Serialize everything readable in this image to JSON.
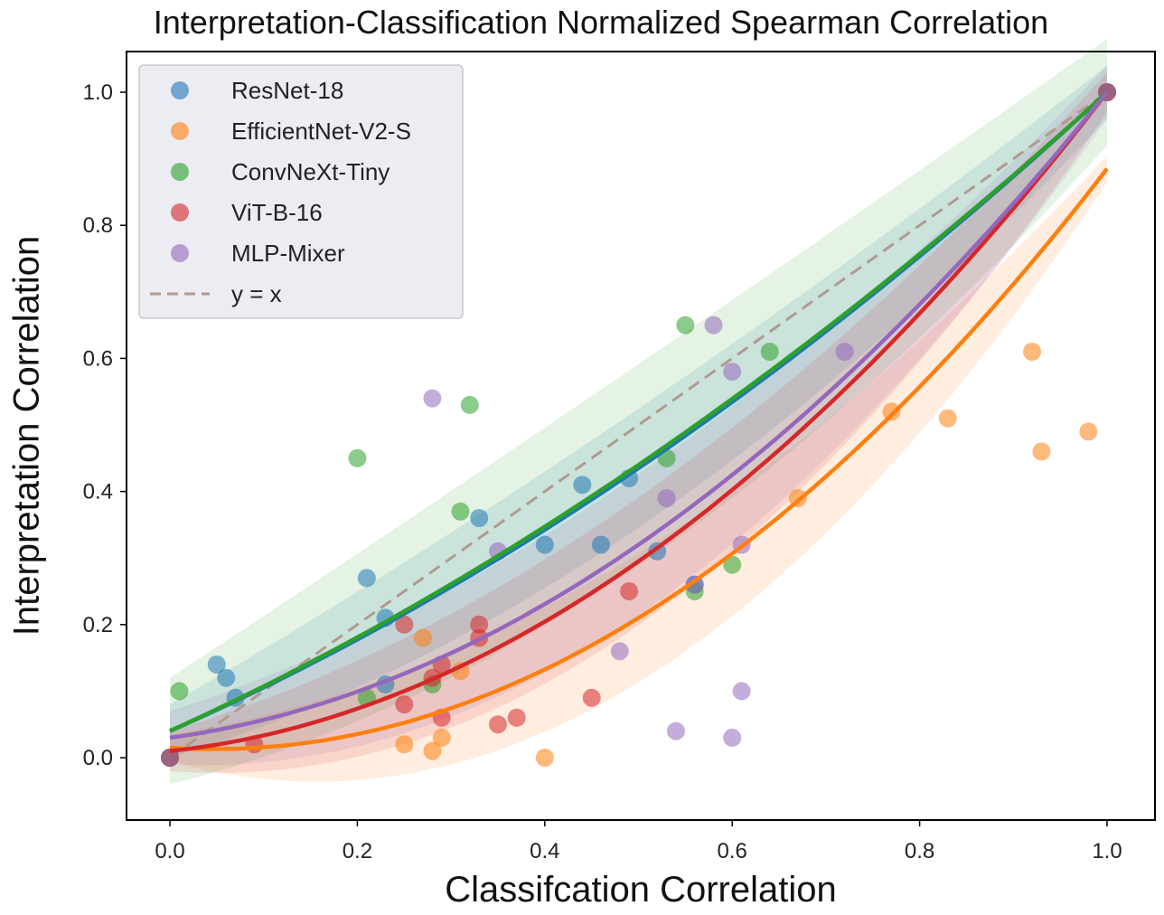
{
  "chart_data": {
    "type": "scatter",
    "title": "Interpretation-Classification Normalized Spearman Correlation",
    "xlabel": "Classifcation Correlation",
    "ylabel": "Interpretation Correlation",
    "xlim": [
      -0.09,
      1.05
    ],
    "ylim": [
      -0.09,
      1.06
    ],
    "xticks": [
      "0.0",
      "0.2",
      "0.4",
      "0.6",
      "0.8",
      "1.0"
    ],
    "yticks": [
      "0.0",
      "0.2",
      "0.4",
      "0.6",
      "0.8",
      "1.0"
    ],
    "grid": false,
    "legend_position": "top-left",
    "series": [
      {
        "name": "ResNet-18",
        "color": "#1f77b4",
        "points": [
          [
            0.0,
            0.0
          ],
          [
            0.05,
            0.14
          ],
          [
            0.06,
            0.12
          ],
          [
            0.07,
            0.09
          ],
          [
            0.21,
            0.27
          ],
          [
            0.23,
            0.11
          ],
          [
            0.23,
            0.21
          ],
          [
            0.33,
            0.36
          ],
          [
            0.4,
            0.32
          ],
          [
            0.44,
            0.41
          ],
          [
            0.46,
            0.32
          ],
          [
            0.49,
            0.42
          ],
          [
            0.52,
            0.31
          ],
          [
            0.56,
            0.26
          ],
          [
            1.0,
            1.0
          ]
        ],
        "fit": [
          0.04,
          0.62,
          0.34
        ],
        "band": [
          0.04,
          0.09
        ]
      },
      {
        "name": "EfficientNet-V2-S",
        "color": "#ff7f0e",
        "points": [
          [
            0.0,
            0.0
          ],
          [
            0.25,
            0.02
          ],
          [
            0.27,
            0.18
          ],
          [
            0.28,
            0.01
          ],
          [
            0.29,
            0.03
          ],
          [
            0.31,
            0.13
          ],
          [
            0.4,
            0.0
          ],
          [
            0.67,
            0.39
          ],
          [
            0.77,
            0.52
          ],
          [
            0.83,
            0.51
          ],
          [
            0.92,
            0.61
          ],
          [
            0.93,
            0.46
          ],
          [
            0.98,
            0.49
          ],
          [
            1.0,
            1.0
          ]
        ],
        "fit": [
          0.015,
          -0.09,
          0.96
        ],
        "band": [
          0.02,
          0.14
        ]
      },
      {
        "name": "ConvNeXt-Tiny",
        "color": "#2ca02c",
        "points": [
          [
            0.0,
            0.0
          ],
          [
            0.01,
            0.1
          ],
          [
            0.2,
            0.45
          ],
          [
            0.21,
            0.09
          ],
          [
            0.28,
            0.11
          ],
          [
            0.31,
            0.37
          ],
          [
            0.32,
            0.53
          ],
          [
            0.53,
            0.45
          ],
          [
            0.55,
            0.65
          ],
          [
            0.56,
            0.25
          ],
          [
            0.6,
            0.29
          ],
          [
            0.64,
            0.61
          ],
          [
            1.0,
            1.0
          ]
        ],
        "fit": [
          0.04,
          0.64,
          0.32
        ],
        "band": [
          0.08,
          0.13
        ]
      },
      {
        "name": "ViT-B-16",
        "color": "#d62728",
        "points": [
          [
            0.0,
            0.0
          ],
          [
            0.09,
            0.02
          ],
          [
            0.25,
            0.08
          ],
          [
            0.25,
            0.2
          ],
          [
            0.28,
            0.12
          ],
          [
            0.29,
            0.06
          ],
          [
            0.29,
            0.14
          ],
          [
            0.33,
            0.2
          ],
          [
            0.33,
            0.18
          ],
          [
            0.35,
            0.05
          ],
          [
            0.37,
            0.06
          ],
          [
            0.45,
            0.09
          ],
          [
            0.49,
            0.25
          ],
          [
            1.0,
            1.0
          ]
        ],
        "fit": [
          0.01,
          0.15,
          0.84
        ],
        "band": [
          0.03,
          0.12
        ]
      },
      {
        "name": "MLP-Mixer",
        "color": "#9467bd",
        "points": [
          [
            0.0,
            0.0
          ],
          [
            0.28,
            0.54
          ],
          [
            0.35,
            0.31
          ],
          [
            0.48,
            0.16
          ],
          [
            0.53,
            0.39
          ],
          [
            0.54,
            0.04
          ],
          [
            0.56,
            0.26
          ],
          [
            0.58,
            0.65
          ],
          [
            0.6,
            0.58
          ],
          [
            0.6,
            0.03
          ],
          [
            0.61,
            0.1
          ],
          [
            0.61,
            0.32
          ],
          [
            0.72,
            0.61
          ],
          [
            1.0,
            1.0
          ]
        ],
        "fit": [
          0.03,
          0.19,
          0.78
        ],
        "band": [
          0.04,
          0.12
        ]
      }
    ],
    "reference_line": {
      "name": "y = x",
      "color": "#b09a8e",
      "style": "dashed"
    }
  }
}
